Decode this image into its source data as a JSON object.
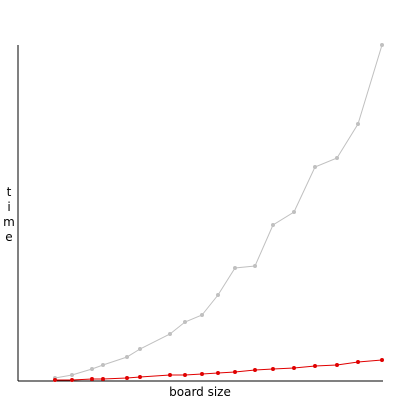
{
  "chart_data": {
    "type": "line",
    "x_label": "board size",
    "y_label": "time",
    "xlim": [
      0,
      365
    ],
    "ylim": [
      0,
      336
    ],
    "series": [
      {
        "color": "#c0c0c0",
        "x": [
          37,
          54,
          74,
          85,
          109,
          122,
          152,
          167,
          184,
          200,
          217,
          237,
          255,
          276,
          297,
          319,
          340,
          364
        ],
        "values": [
          3,
          6,
          12,
          16,
          24,
          32,
          47,
          59,
          66,
          86,
          113,
          115,
          156,
          169,
          214,
          223,
          257,
          336
        ]
      },
      {
        "color": "#e00000",
        "x": [
          37,
          54,
          74,
          85,
          109,
          122,
          152,
          167,
          184,
          200,
          217,
          237,
          255,
          276,
          297,
          319,
          340,
          364
        ],
        "values": [
          1,
          1,
          2,
          2,
          3,
          4,
          6,
          6,
          7,
          8,
          9,
          11,
          12,
          13,
          15,
          16,
          19,
          21
        ]
      }
    ]
  }
}
